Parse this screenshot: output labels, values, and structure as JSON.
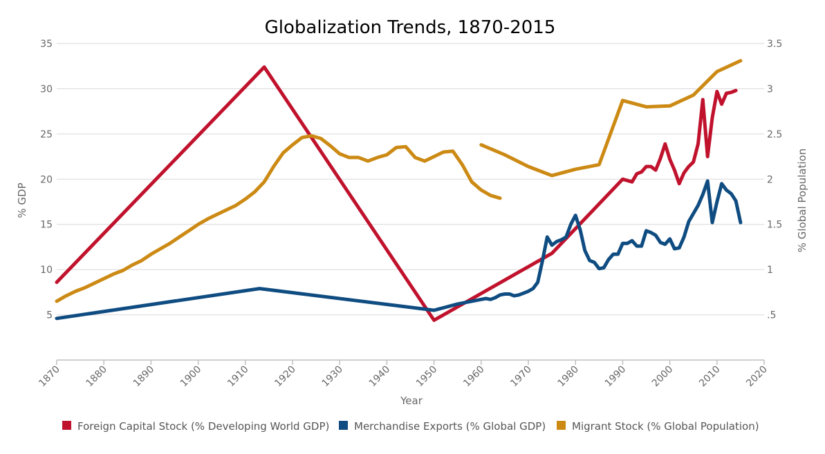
{
  "chart_data": {
    "type": "line",
    "title": "Globalization Trends, 1870-2015",
    "xlabel": "Year",
    "ylabel": "% GDP",
    "y2label": "% Global Population",
    "xlim": [
      1870,
      2020
    ],
    "ylim": [
      0,
      35
    ],
    "y2lim": [
      0,
      3.5
    ],
    "x_ticks": [
      "1870",
      "1880",
      "1890",
      "1900",
      "1910",
      "1920",
      "1930",
      "1940",
      "1950",
      "1960",
      "1970",
      "1980",
      "1990",
      "2000",
      "2010",
      "2020"
    ],
    "y_ticks": [
      "5",
      "10",
      "15",
      "20",
      "25",
      "30",
      "35"
    ],
    "y2_ticks": [
      ".5",
      "1",
      "1.5",
      "2",
      "2.5",
      "3",
      "3.5"
    ],
    "grid": true,
    "legend_position": "bottom",
    "series": [
      {
        "name": "Foreign Capital Stock (% Developing World GDP)",
        "axis": "left",
        "color": "#c0122d",
        "segments": [
          [
            [
              1870,
              8.6
            ],
            [
              1914,
              32.4
            ],
            [
              1950,
              4.4
            ],
            [
              1975,
              11.8
            ],
            [
              1990,
              20.0
            ],
            [
              1992,
              19.7
            ],
            [
              1993,
              20.6
            ],
            [
              1994,
              20.8
            ],
            [
              1995,
              21.4
            ],
            [
              1996,
              21.4
            ],
            [
              1997,
              21.0
            ],
            [
              1998,
              22.3
            ],
            [
              1999,
              23.9
            ],
            [
              2000,
              22.2
            ],
            [
              2001,
              21.0
            ],
            [
              2002,
              19.5
            ],
            [
              2003,
              20.7
            ],
            [
              2004,
              21.4
            ],
            [
              2005,
              21.9
            ],
            [
              2006,
              23.9
            ],
            [
              2007,
              28.8
            ],
            [
              2008,
              22.5
            ],
            [
              2009,
              26.8
            ],
            [
              2010,
              29.7
            ],
            [
              2011,
              28.3
            ],
            [
              2012,
              29.5
            ],
            [
              2013,
              29.6
            ],
            [
              2014,
              29.8
            ]
          ]
        ]
      },
      {
        "name": "Merchandise Exports (% Global GDP)",
        "axis": "left",
        "color": "#0f4c81",
        "segments": [
          [
            [
              1870,
              4.6
            ],
            [
              1913,
              7.9
            ],
            [
              1950,
              5.5
            ],
            [
              1955,
              6.2
            ],
            [
              1960,
              6.7
            ],
            [
              1961,
              6.8
            ],
            [
              1962,
              6.7
            ],
            [
              1963,
              6.9
            ],
            [
              1964,
              7.2
            ],
            [
              1965,
              7.3
            ],
            [
              1966,
              7.3
            ],
            [
              1967,
              7.1
            ],
            [
              1968,
              7.2
            ],
            [
              1969,
              7.4
            ],
            [
              1970,
              7.6
            ],
            [
              1971,
              7.9
            ],
            [
              1972,
              8.6
            ],
            [
              1973,
              11.0
            ],
            [
              1974,
              13.6
            ],
            [
              1975,
              12.7
            ],
            [
              1976,
              13.1
            ],
            [
              1977,
              13.3
            ],
            [
              1978,
              13.6
            ],
            [
              1979,
              15.0
            ],
            [
              1980,
              16.0
            ],
            [
              1981,
              14.4
            ],
            [
              1982,
              12.1
            ],
            [
              1983,
              11.0
            ],
            [
              1984,
              10.8
            ],
            [
              1985,
              10.1
            ],
            [
              1986,
              10.2
            ],
            [
              1987,
              11.1
            ],
            [
              1988,
              11.7
            ],
            [
              1989,
              11.7
            ],
            [
              1990,
              12.9
            ],
            [
              1991,
              12.9
            ],
            [
              1992,
              13.2
            ],
            [
              1993,
              12.6
            ],
            [
              1994,
              12.6
            ],
            [
              1995,
              14.3
            ],
            [
              1996,
              14.1
            ],
            [
              1997,
              13.8
            ],
            [
              1998,
              13.0
            ],
            [
              1999,
              12.8
            ],
            [
              2000,
              13.4
            ],
            [
              2001,
              12.3
            ],
            [
              2002,
              12.4
            ],
            [
              2003,
              13.6
            ],
            [
              2004,
              15.3
            ],
            [
              2005,
              16.2
            ],
            [
              2006,
              17.1
            ],
            [
              2007,
              18.3
            ],
            [
              2008,
              19.8
            ],
            [
              2009,
              15.2
            ],
            [
              2010,
              17.5
            ],
            [
              2011,
              19.5
            ],
            [
              2012,
              18.8
            ],
            [
              2013,
              18.4
            ],
            [
              2014,
              17.6
            ],
            [
              2015,
              15.2
            ]
          ]
        ]
      },
      {
        "name": "Migrant Stock (% Global Population)",
        "axis": "right",
        "color": "#cc8a14",
        "segments": [
          [
            [
              1870,
              0.65
            ],
            [
              1872,
              0.71
            ],
            [
              1874,
              0.76
            ],
            [
              1876,
              0.8
            ],
            [
              1878,
              0.85
            ],
            [
              1880,
              0.9
            ],
            [
              1882,
              0.95
            ],
            [
              1884,
              0.99
            ],
            [
              1886,
              1.05
            ],
            [
              1888,
              1.1
            ],
            [
              1890,
              1.17
            ],
            [
              1892,
              1.23
            ],
            [
              1894,
              1.29
            ],
            [
              1896,
              1.36
            ],
            [
              1898,
              1.43
            ],
            [
              1900,
              1.5
            ],
            [
              1902,
              1.56
            ],
            [
              1904,
              1.61
            ],
            [
              1906,
              1.66
            ],
            [
              1908,
              1.71
            ],
            [
              1910,
              1.78
            ],
            [
              1912,
              1.86
            ],
            [
              1914,
              1.97
            ],
            [
              1916,
              2.14
            ],
            [
              1918,
              2.29
            ],
            [
              1920,
              2.38
            ],
            [
              1922,
              2.46
            ],
            [
              1924,
              2.48
            ],
            [
              1926,
              2.45
            ],
            [
              1928,
              2.37
            ],
            [
              1930,
              2.28
            ],
            [
              1932,
              2.24
            ],
            [
              1934,
              2.24
            ],
            [
              1936,
              2.2
            ],
            [
              1938,
              2.24
            ],
            [
              1940,
              2.27
            ],
            [
              1942,
              2.35
            ],
            [
              1944,
              2.36
            ],
            [
              1946,
              2.24
            ],
            [
              1948,
              2.2
            ],
            [
              1950,
              2.25
            ],
            [
              1952,
              2.3
            ],
            [
              1954,
              2.31
            ],
            [
              1956,
              2.16
            ],
            [
              1958,
              1.97
            ],
            [
              1960,
              1.88
            ],
            [
              1962,
              1.82
            ],
            [
              1964,
              1.79
            ]
          ],
          [
            [
              1960,
              2.38
            ],
            [
              1965,
              2.27
            ],
            [
              1970,
              2.14
            ],
            [
              1975,
              2.04
            ],
            [
              1980,
              2.11
            ],
            [
              1985,
              2.16
            ],
            [
              1990,
              2.87
            ],
            [
              1995,
              2.8
            ],
            [
              2000,
              2.81
            ],
            [
              2005,
              2.93
            ],
            [
              2010,
              3.19
            ],
            [
              2015,
              3.31
            ]
          ]
        ]
      }
    ]
  }
}
